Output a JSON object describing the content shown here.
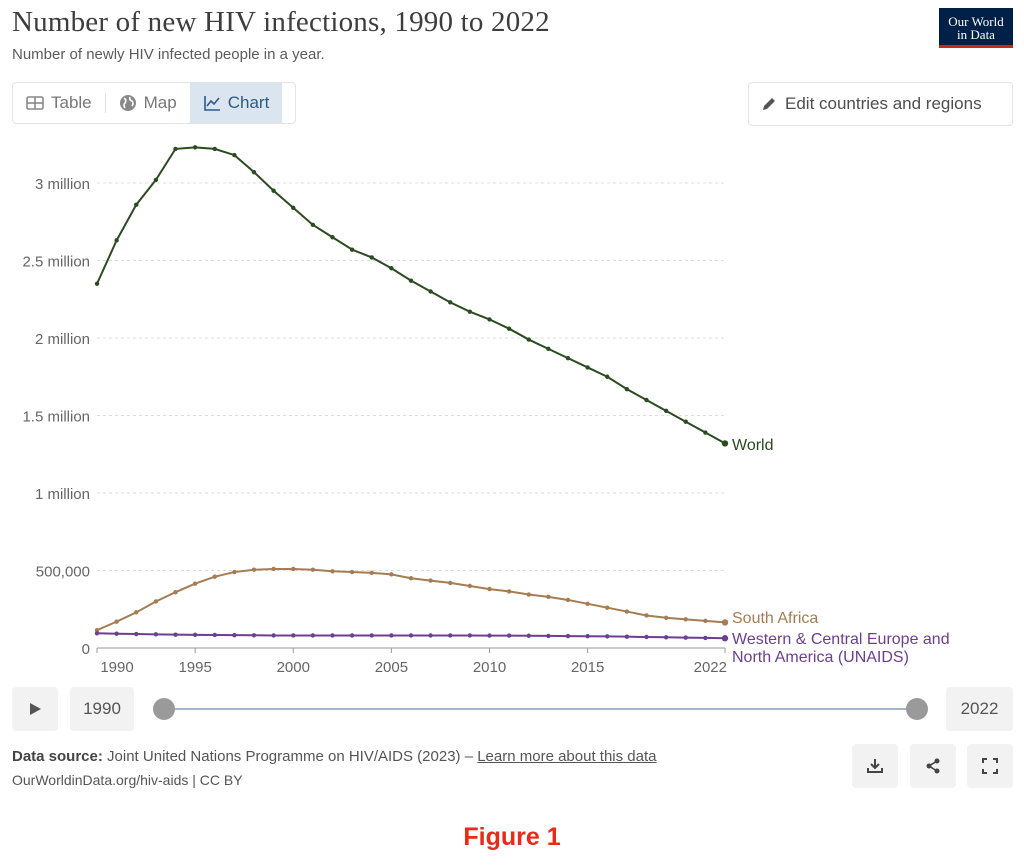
{
  "header": {
    "title": "Number of new HIV infections, 1990 to 2022",
    "subtitle": "Number of newly HIV infected people in a year.",
    "logo_line1": "Our World",
    "logo_line2": "in Data"
  },
  "tabs": [
    {
      "label": "Table",
      "icon": "table-icon",
      "active": false
    },
    {
      "label": "Map",
      "icon": "globe-icon",
      "active": false
    },
    {
      "label": "Chart",
      "icon": "line-chart-icon",
      "active": true
    }
  ],
  "edit_button": {
    "label": "Edit countries and regions",
    "icon": "pencil-icon"
  },
  "timeline": {
    "start": "1990",
    "end": "2022",
    "play_icon": "play-icon"
  },
  "footer": {
    "source_label": "Data source:",
    "source_text": " Joint United Nations Programme on HIV/AIDS (2023) – ",
    "learn_more": "Learn more about this data",
    "url": "OurWorldinData.org/hiv-aids | CC BY",
    "download_icon": "download-icon",
    "share_icon": "share-icon",
    "fullscreen_icon": "fullscreen-icon"
  },
  "caption": "Figure 1",
  "colors": {
    "world": "#2c4b21",
    "south_africa": "#a67c52",
    "europe": "#6d3e91",
    "grid": "#dddddd",
    "axis_text": "#666666"
  },
  "chart_data": {
    "type": "line",
    "xlim": [
      1990,
      2022
    ],
    "ylim": [
      0,
      3300000
    ],
    "grid": true,
    "legend": "end-of-line labels",
    "xticks": [
      1990,
      1995,
      2000,
      2005,
      2010,
      2015,
      2022
    ],
    "yticks": [
      {
        "value": 0,
        "label": "0"
      },
      {
        "value": 500000,
        "label": "500,000"
      },
      {
        "value": 1000000,
        "label": "1 million"
      },
      {
        "value": 1500000,
        "label": "1.5 million"
      },
      {
        "value": 2000000,
        "label": "2 million"
      },
      {
        "value": 2500000,
        "label": "2.5 million"
      },
      {
        "value": 3000000,
        "label": "3 million"
      }
    ],
    "x": [
      1990,
      1991,
      1992,
      1993,
      1994,
      1995,
      1996,
      1997,
      1998,
      1999,
      2000,
      2001,
      2002,
      2003,
      2004,
      2005,
      2006,
      2007,
      2008,
      2009,
      2010,
      2011,
      2012,
      2013,
      2014,
      2015,
      2016,
      2017,
      2018,
      2019,
      2020,
      2021,
      2022
    ],
    "series": [
      {
        "name": "World",
        "key": "world",
        "values": [
          2350000,
          2630000,
          2860000,
          3020000,
          3220000,
          3230000,
          3220000,
          3180000,
          3070000,
          2950000,
          2840000,
          2730000,
          2650000,
          2570000,
          2520000,
          2450000,
          2370000,
          2300000,
          2230000,
          2170000,
          2120000,
          2060000,
          1990000,
          1930000,
          1870000,
          1810000,
          1750000,
          1670000,
          1600000,
          1530000,
          1460000,
          1390000,
          1320000
        ]
      },
      {
        "name": "South Africa",
        "key": "south_africa",
        "values": [
          115000,
          170000,
          230000,
          300000,
          360000,
          415000,
          460000,
          490000,
          505000,
          510000,
          510000,
          505000,
          495000,
          490000,
          485000,
          475000,
          450000,
          435000,
          420000,
          400000,
          380000,
          365000,
          345000,
          330000,
          310000,
          285000,
          260000,
          235000,
          210000,
          195000,
          185000,
          175000,
          165000
        ]
      },
      {
        "name": "Western & Central Europe and North America (UNAIDS)",
        "key": "europe",
        "label_lines": [
          "Western & Central Europe and",
          "North America (UNAIDS)"
        ],
        "values": [
          95000,
          92000,
          90000,
          88000,
          86000,
          85000,
          84000,
          83000,
          82000,
          81000,
          81000,
          81000,
          81000,
          81000,
          81000,
          81000,
          81000,
          81000,
          81000,
          81000,
          80000,
          80000,
          79000,
          78000,
          77000,
          76000,
          75000,
          73000,
          71000,
          69000,
          67000,
          65000,
          63000
        ]
      }
    ]
  }
}
